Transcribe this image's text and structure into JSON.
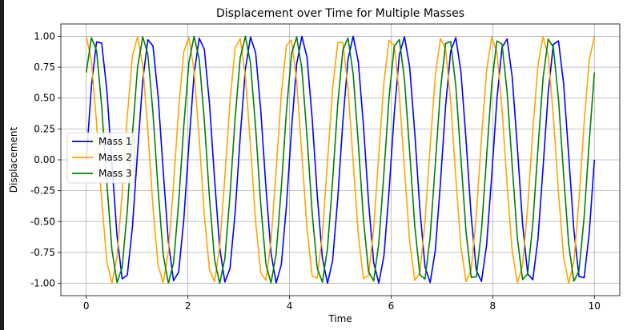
{
  "chart_data": {
    "type": "line",
    "title": "Displacement over Time for Multiple Masses",
    "xlabel": "Time",
    "ylabel": "Displacement",
    "xlim": [
      -0.5,
      10.5
    ],
    "ylim": [
      -1.1,
      1.1
    ],
    "xticks": [
      0,
      2,
      4,
      6,
      8,
      10
    ],
    "xtick_labels": [
      "0",
      "2",
      "4",
      "6",
      "8",
      "10"
    ],
    "yticks": [
      -1.0,
      -0.75,
      -0.5,
      -0.25,
      0.0,
      0.25,
      0.5,
      0.75,
      1.0
    ],
    "ytick_labels": [
      "-1.00",
      "-0.75",
      "-0.50",
      "-0.25",
      "0.00",
      "0.25",
      "0.50",
      "0.75",
      "1.00"
    ],
    "grid": true,
    "legend_position": "center-left",
    "x_range": [
      0,
      10
    ],
    "samples": 100,
    "series": [
      {
        "name": "Mass 1",
        "color": "#0000ff",
        "function": "sin(2*pi*t)",
        "phase": 0
      },
      {
        "name": "Mass 2",
        "color": "#ffa500",
        "function": "cos(2*pi*t)",
        "phase": 1.5708
      },
      {
        "name": "Mass 3",
        "color": "#008000",
        "function": "sin(2*pi*t + pi/4)",
        "phase": 0.7854
      }
    ]
  }
}
